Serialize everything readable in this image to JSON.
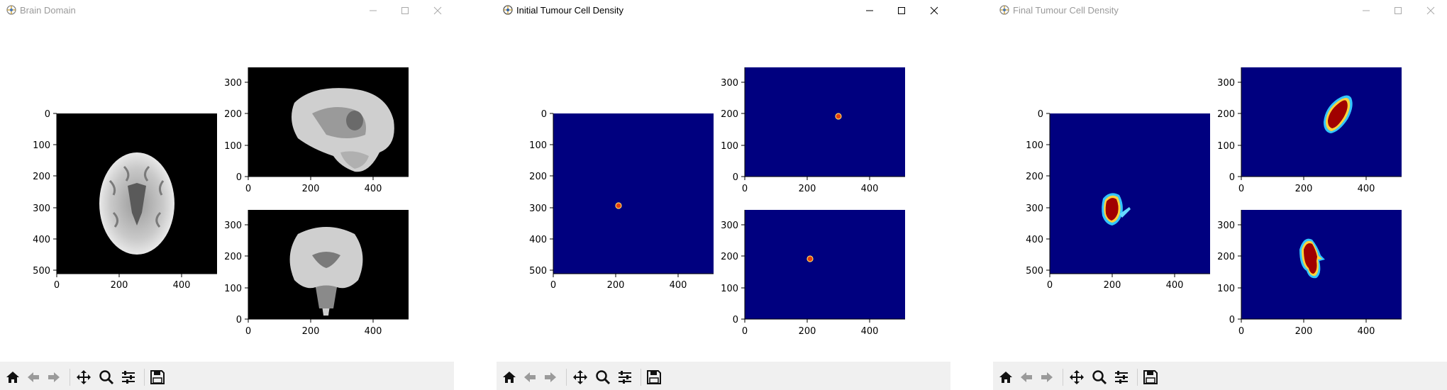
{
  "windows": [
    {
      "title": "Brain Domain",
      "state": "inactive",
      "view": "brain"
    },
    {
      "title": "Initial Tumour Cell Density",
      "state": "active",
      "view": "initial"
    },
    {
      "title": "Final Tumour Cell Density",
      "state": "inactive",
      "view": "final"
    }
  ],
  "axes": {
    "large": {
      "x_ticks": [
        "0",
        "200",
        "400"
      ],
      "y_ticks": [
        "0",
        "100",
        "200",
        "300",
        "400",
        "500"
      ]
    },
    "small": {
      "x_ticks": [
        "0",
        "200",
        "400"
      ],
      "y_ticks": [
        "0",
        "100",
        "200",
        "300"
      ]
    }
  },
  "toolbar_icons": [
    "home-icon",
    "back-arrow-icon",
    "forward-arrow-icon",
    "pan-icon",
    "zoom-icon",
    "subplots-icon",
    "save-icon"
  ],
  "colors": {
    "colormap_background": "#00007f",
    "tumour_core": "#9a0000",
    "toolbar_bg": "#f0f0f0"
  }
}
